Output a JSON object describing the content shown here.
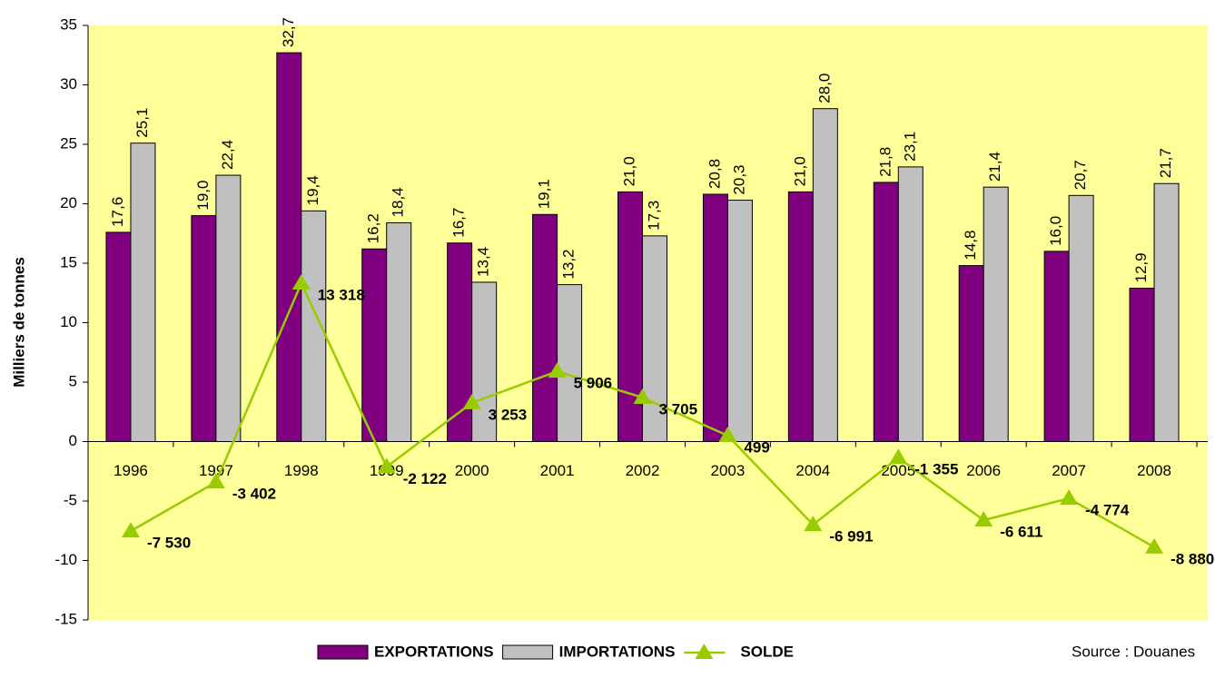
{
  "chart_data": {
    "type": "bar_line",
    "y_label": "Milliers de tonnes",
    "source": "Source : Douanes",
    "categories": [
      "1996",
      "1997",
      "1998",
      "1999",
      "2000",
      "2001",
      "2002",
      "2003",
      "2004",
      "2005",
      "2006",
      "2007",
      "2008"
    ],
    "series": [
      {
        "name": "EXPORTATIONS",
        "type": "bar",
        "color": "#800080",
        "values": [
          17.6,
          19.0,
          32.7,
          16.2,
          16.7,
          19.1,
          21.0,
          20.8,
          21.0,
          21.8,
          14.8,
          16.0,
          12.9
        ],
        "value_labels": [
          "17,6",
          "19,0",
          "32,7",
          "16,2",
          "16,7",
          "19,1",
          "21,0",
          "20,8",
          "21,0",
          "21,8",
          "14,8",
          "16,0",
          "12,9"
        ]
      },
      {
        "name": "IMPORTATIONS",
        "type": "bar",
        "color": "#c0c0c0",
        "values": [
          25.1,
          22.4,
          19.4,
          18.4,
          13.4,
          13.2,
          17.3,
          20.3,
          28.0,
          23.1,
          21.4,
          20.7,
          21.7
        ],
        "value_labels": [
          "25,1",
          "22,4",
          "19,4",
          "18,4",
          "13,4",
          "13,2",
          "17,3",
          "20,3",
          "28,0",
          "23,1",
          "21,4",
          "20,7",
          "21,7"
        ]
      },
      {
        "name": "SOLDE",
        "type": "line",
        "color": "#99cc00",
        "values": [
          -7.53,
          -3.402,
          13.318,
          -2.122,
          3.253,
          5.906,
          3.705,
          0.499,
          -6.991,
          -1.355,
          -6.611,
          -4.774,
          -8.88
        ],
        "value_labels": [
          "-7 530",
          "-3 402",
          "13 318",
          "-2 122",
          "3 253",
          "5 906",
          "3 705",
          "499",
          "-6 991",
          "-1 355",
          "-6 611",
          "-4 774",
          "-8 880"
        ]
      }
    ],
    "ylim": [
      -15,
      35
    ],
    "yticks": [
      -15,
      -10,
      -5,
      0,
      5,
      10,
      15,
      20,
      25,
      30,
      35
    ]
  }
}
